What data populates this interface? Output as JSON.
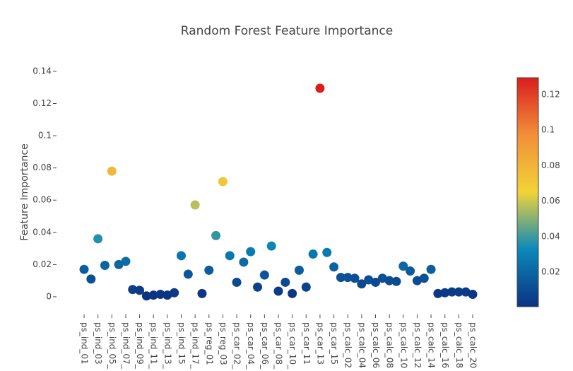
{
  "chart_data": {
    "type": "scatter",
    "title": "Random Forest Feature Importance",
    "y_label": "Feature Importance",
    "categories": [
      "ps_ind_01",
      null,
      "ps_ind_03",
      null,
      "ps_ind_05_",
      null,
      "ps_ind_07_",
      null,
      "ps_ind_09_",
      null,
      "ps_ind_11_",
      null,
      "ps_ind_13_",
      null,
      "ps_ind_15",
      null,
      "ps_ind_17_",
      null,
      "ps_reg_01",
      null,
      "ps_reg_03",
      null,
      "ps_car_02_",
      null,
      "ps_car_04_",
      null,
      "ps_car_06_",
      null,
      "ps_car_08_",
      null,
      "ps_car_10_",
      null,
      "ps_car_11",
      null,
      "ps_car_13",
      null,
      "ps_car_15",
      null,
      "ps_calc_02",
      null,
      "ps_calc_04",
      null,
      "ps_calc_06",
      null,
      "ps_calc_08",
      null,
      "ps_calc_10",
      null,
      "ps_calc_12",
      null,
      "ps_calc_14",
      null,
      "ps_calc_16",
      null,
      "ps_calc_18",
      null,
      "ps_calc_20"
    ],
    "values": [
      0.017,
      0.011,
      0.036,
      0.0195,
      0.078,
      0.02,
      0.022,
      0.0045,
      0.004,
      0.0005,
      0.001,
      0.0015,
      0.001,
      0.0025,
      0.0255,
      0.014,
      0.057,
      0.002,
      0.0165,
      0.038,
      0.0715,
      0.0255,
      0.009,
      0.0215,
      0.028,
      0.006,
      0.0135,
      0.0315,
      0.0035,
      0.009,
      0.002,
      0.0165,
      0.006,
      0.0265,
      0.1295,
      0.0275,
      0.0185,
      0.012,
      0.012,
      0.0115,
      0.008,
      0.0105,
      0.009,
      0.0115,
      0.01,
      0.0095,
      0.019,
      0.016,
      0.01,
      0.0115,
      0.017,
      0.002,
      0.0025,
      0.003,
      0.003,
      0.003,
      0.0015
    ],
    "ylim": [
      -0.0088,
      0.1426
    ],
    "yticks": [
      0,
      0.02,
      0.04,
      0.06,
      0.08,
      0.1,
      0.12,
      0.14
    ],
    "colorscale": [
      [
        0,
        "#0c3383"
      ],
      [
        0.25,
        "#0a88ba"
      ],
      [
        0.5,
        "#f2d338"
      ],
      [
        0.75,
        "#f28f38"
      ],
      [
        1,
        "#d91e1e"
      ]
    ],
    "colorbar_lim": [
      0.0005,
      0.1295
    ],
    "colorbar_ticks": [
      0.02,
      0.04,
      0.06,
      0.08,
      0.1,
      0.12
    ],
    "grid": false
  }
}
